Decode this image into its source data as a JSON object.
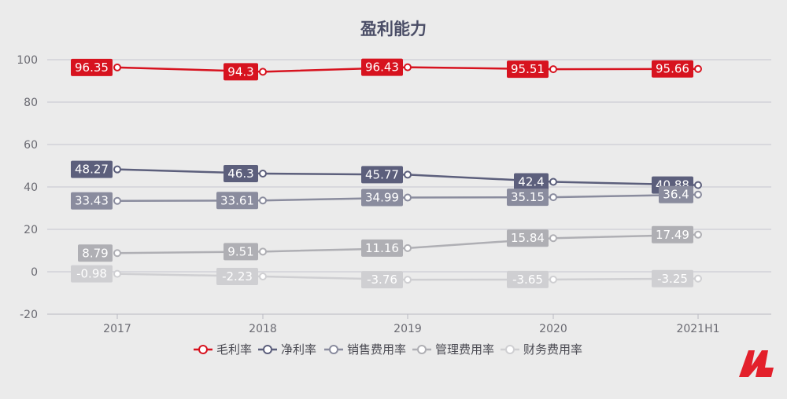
{
  "chart_data": {
    "type": "line",
    "title": "盈利能力",
    "categories": [
      "2017",
      "2018",
      "2019",
      "2020",
      "2021H1"
    ],
    "ylim": [
      -20,
      100
    ],
    "yticks": [
      -20,
      0,
      20,
      40,
      60,
      80,
      100
    ],
    "grid": true,
    "legend_position": "bottom",
    "series": [
      {
        "name": "毛利率",
        "color": "#d7131f",
        "values": [
          96.35,
          94.3,
          96.43,
          95.51,
          95.66
        ]
      },
      {
        "name": "净利率",
        "color": "#5c5f7c",
        "values": [
          48.27,
          46.3,
          45.77,
          42.4,
          40.88
        ]
      },
      {
        "name": "销售费用率",
        "color": "#8a8c9e",
        "values": [
          33.43,
          33.61,
          34.99,
          35.15,
          36.4
        ]
      },
      {
        "name": "管理费用率",
        "color": "#afafb4",
        "values": [
          8.79,
          9.51,
          11.16,
          15.84,
          17.49
        ]
      },
      {
        "name": "财务费用率",
        "color": "#cfcfd2",
        "values": [
          -0.98,
          -2.23,
          -3.76,
          -3.65,
          -3.25
        ]
      }
    ]
  }
}
